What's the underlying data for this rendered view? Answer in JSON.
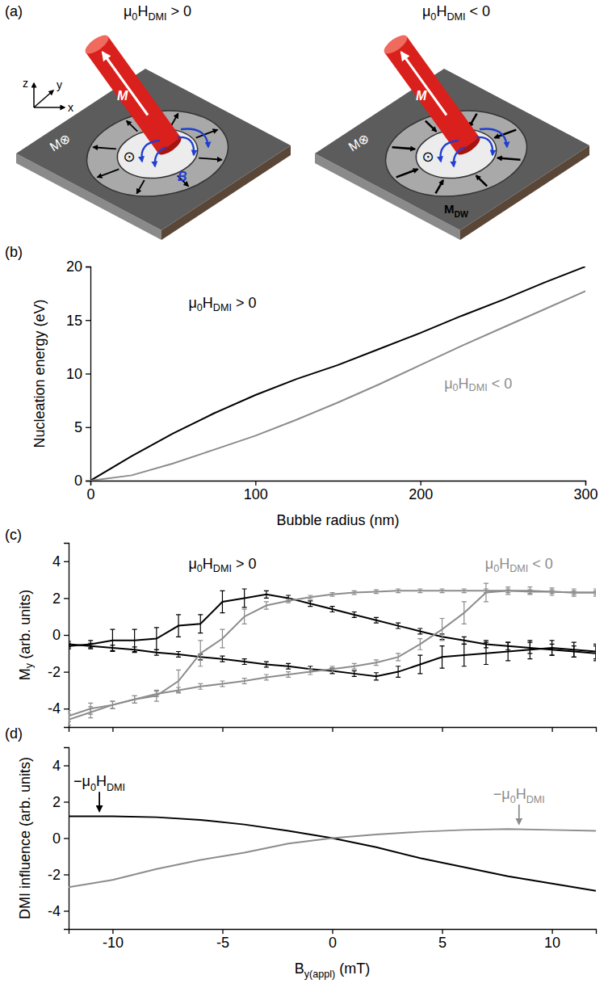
{
  "diagram": {
    "label": "(a)",
    "axes": {
      "x": "x",
      "y": "y",
      "z": "z"
    },
    "panels": [
      {
        "title": "μ0HDMI > 0",
        "magnet": "M",
        "field": "B",
        "film": "M⊗",
        "core": "⊙"
      },
      {
        "title": "μ0HDMI < 0",
        "magnet": "M",
        "wall": "MDW",
        "film": "M⊗",
        "core": "⊙"
      }
    ]
  },
  "chart_data": [
    {
      "type": "line",
      "title": "(b)",
      "x_label": "Bubble radius (nm)",
      "y_label": "Nucleation energy (eV)",
      "x": [
        0,
        25,
        50,
        75,
        100,
        125,
        150,
        175,
        200,
        225,
        250,
        275,
        300
      ],
      "series": [
        {
          "color": "#000000",
          "values": [
            0,
            2.3,
            4.4,
            6.3,
            8.0,
            9.5,
            10.8,
            12.3,
            13.8,
            15.4,
            16.9,
            18.5,
            20.0
          ]
        },
        {
          "color": "#8c8c8c",
          "values": [
            0,
            0.5,
            1.6,
            2.9,
            4.2,
            5.7,
            7.3,
            9.0,
            10.8,
            12.6,
            14.3,
            16.0,
            17.7
          ]
        }
      ],
      "xlim": [
        0,
        300
      ],
      "ylim": [
        0,
        20
      ],
      "xticks": [
        0,
        100,
        200,
        300
      ],
      "yticks": [
        0,
        5,
        10,
        15,
        20
      ],
      "annotations": [
        {
          "text": "μ0HDMI > 0",
          "x": 80,
          "y": 16.5,
          "color": "#000000"
        },
        {
          "text": "μ0HDMI < 0",
          "x": 235,
          "y": 9,
          "color": "#8c8c8c"
        }
      ]
    },
    {
      "type": "line",
      "title": "(c)",
      "y_label": "My (arb. units)",
      "x": [
        -12,
        -11,
        -10,
        -9,
        -8,
        -7,
        -6,
        -5,
        -4,
        -3,
        -2,
        -1,
        0,
        1,
        2,
        3,
        4,
        5,
        6,
        7,
        8,
        9,
        10,
        11,
        12
      ],
      "series": [
        {
          "color": "#000000",
          "values": [
            -0.6,
            -0.5,
            -0.3,
            -0.3,
            -0.2,
            0.5,
            0.6,
            1.8,
            2.0,
            2.2,
            2.0,
            1.7,
            1.4,
            1.1,
            0.8,
            0.5,
            0.2,
            -0.1,
            -0.3,
            -0.5,
            -0.6,
            -0.7,
            -0.8,
            -0.9,
            -1.0
          ],
          "errors": [
            0.15,
            0.2,
            0.6,
            0.6,
            0.6,
            0.6,
            0.5,
            0.6,
            0.5,
            0.2,
            0.15,
            0.15,
            0.15,
            0.15,
            0.15,
            0.15,
            0.15,
            0.15,
            0.2,
            0.2,
            0.2,
            0.3,
            0.3,
            0.3,
            0.4
          ]
        },
        {
          "color": "#000000",
          "values": [
            -0.5,
            -0.6,
            -0.7,
            -0.8,
            -0.95,
            -1.05,
            -1.2,
            -1.3,
            -1.45,
            -1.6,
            -1.7,
            -1.85,
            -1.95,
            -2.1,
            -2.25,
            -2.0,
            -1.6,
            -1.2,
            -1.1,
            -1.0,
            -0.9,
            -0.8,
            -0.7,
            -0.8,
            -0.9
          ],
          "errors": [
            0.15,
            0.15,
            0.15,
            0.15,
            0.15,
            0.15,
            0.15,
            0.15,
            0.15,
            0.15,
            0.15,
            0.15,
            0.15,
            0.15,
            0.2,
            0.3,
            0.5,
            0.6,
            0.6,
            0.6,
            0.5,
            0.5,
            0.4,
            0.4,
            0.4
          ]
        },
        {
          "color": "#8c8c8c",
          "values": [
            -4.4,
            -4.0,
            -3.8,
            -3.5,
            -3.3,
            -2.5,
            -1.0,
            -0.2,
            1.0,
            1.6,
            1.85,
            2.05,
            2.2,
            2.3,
            2.35,
            2.4,
            2.4,
            2.4,
            2.4,
            2.4,
            2.4,
            2.35,
            2.35,
            2.3,
            2.3
          ],
          "errors": [
            0.3,
            0.3,
            0.2,
            0.2,
            0.3,
            0.6,
            0.7,
            0.5,
            0.4,
            0.2,
            0.1,
            0.1,
            0.1,
            0.1,
            0.1,
            0.1,
            0.1,
            0.1,
            0.1,
            0.1,
            0.1,
            0.1,
            0.1,
            0.1,
            0.1
          ]
        },
        {
          "color": "#8c8c8c",
          "values": [
            -4.6,
            -4.2,
            -3.8,
            -3.5,
            -3.2,
            -3.0,
            -2.8,
            -2.65,
            -2.5,
            -2.3,
            -2.15,
            -2.0,
            -1.85,
            -1.7,
            -1.5,
            -1.2,
            -0.5,
            0.3,
            1.2,
            2.3,
            2.4,
            2.4,
            2.35,
            2.3,
            2.3
          ],
          "errors": [
            0.3,
            0.3,
            0.2,
            0.2,
            0.15,
            0.15,
            0.15,
            0.15,
            0.15,
            0.15,
            0.15,
            0.15,
            0.15,
            0.15,
            0.15,
            0.2,
            0.3,
            0.6,
            0.6,
            0.5,
            0.2,
            0.2,
            0.2,
            0.2,
            0.2
          ]
        }
      ],
      "xlim": [
        -12,
        12
      ],
      "ylim": [
        -5,
        5
      ],
      "xticks": [
        -10,
        -5,
        0,
        5,
        10
      ],
      "yticks": [
        -4,
        -2,
        0,
        2,
        4
      ],
      "tick_labels": "y",
      "annotations": [
        {
          "text": "μ0HDMI > 0",
          "x": -5,
          "y": 3.8,
          "color": "#000000"
        },
        {
          "text": "μ0HDMI < 0",
          "x": 8.5,
          "y": 3.8,
          "color": "#8c8c8c"
        }
      ]
    },
    {
      "type": "line",
      "title": "(d)",
      "x_label": "By(appl) (mT)",
      "y_label": "DMI influence (arb. units)",
      "x": [
        -12,
        -10,
        -8,
        -6,
        -4,
        -2,
        0,
        2,
        4,
        6,
        8,
        10,
        12
      ],
      "series": [
        {
          "color": "#000000",
          "values": [
            1.2,
            1.2,
            1.15,
            1.0,
            0.75,
            0.4,
            0,
            -0.5,
            -1.1,
            -1.6,
            -2.1,
            -2.5,
            -2.9
          ]
        },
        {
          "color": "#8c8c8c",
          "values": [
            -2.7,
            -2.3,
            -1.7,
            -1.2,
            -0.8,
            -0.3,
            0,
            0.2,
            0.35,
            0.45,
            0.5,
            0.45,
            0.4
          ]
        }
      ],
      "xlim": [
        -12,
        12
      ],
      "ylim": [
        -5,
        5
      ],
      "xticks": [
        -10,
        -5,
        0,
        5,
        10
      ],
      "yticks": [
        -4,
        -2,
        0,
        2,
        4
      ],
      "annotations": [
        {
          "text": "−μ0HDMI",
          "x": -10.6,
          "y": 1.35,
          "color": "#000000",
          "marker": "arrow"
        },
        {
          "text": "−μ0HDMI",
          "x": 8.5,
          "y": 0.65,
          "color": "#8c8c8c",
          "marker": "arrow"
        }
      ]
    }
  ]
}
